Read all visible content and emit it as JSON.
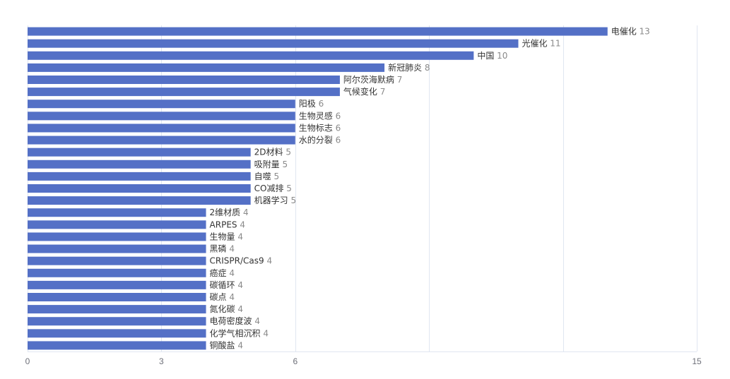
{
  "chart_data": {
    "type": "bar",
    "orientation": "horizontal",
    "categories": [
      "电催化",
      "光催化",
      "中国",
      "新冠肺炎",
      "阿尔茨海默病",
      "气候变化",
      "阳极",
      "生物灵感",
      "生物标志",
      "水的分裂",
      "2D材料",
      "吸附量",
      "自噬",
      "CO减排",
      "机器学习",
      "2维材质",
      "ARPES",
      "生物量",
      "黑磷",
      "CRISPR/Cas9",
      "癌症",
      "碳循环",
      "碳点",
      "氮化碳",
      "电荷密度波",
      "化学气相沉积",
      "铜酸盐"
    ],
    "values": [
      13,
      11,
      10,
      8,
      7,
      7,
      6,
      6,
      6,
      6,
      5,
      5,
      5,
      5,
      5,
      4,
      4,
      4,
      4,
      4,
      4,
      4,
      4,
      4,
      4,
      4,
      4
    ],
    "xticks": [
      0,
      3,
      6,
      15
    ],
    "xlim": [
      0,
      15
    ],
    "grid": true,
    "title": "",
    "xlabel": "",
    "ylabel": "",
    "colors": {
      "bar": "#5470c6",
      "grid": "#e0e6f1",
      "label": "#333333",
      "value": "#8a8a8a"
    }
  }
}
